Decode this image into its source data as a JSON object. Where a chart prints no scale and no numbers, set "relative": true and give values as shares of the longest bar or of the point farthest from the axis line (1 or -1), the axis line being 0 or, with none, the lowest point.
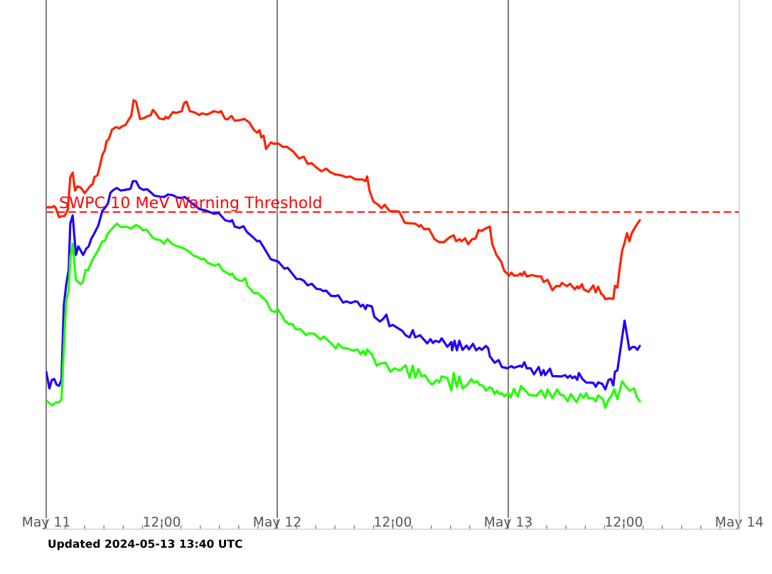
{
  "chart_data": {
    "type": "line",
    "relative": true,
    "tick_labels": "x",
    "xlim": [
      "2024-05-11T00:00",
      "2024-05-14T00:00"
    ],
    "xticks": [
      {
        "value": "2024-05-11T00:00",
        "label": "May 11"
      },
      {
        "value": "2024-05-11T02:00",
        "label": null
      },
      {
        "value": "2024-05-11T04:00",
        "label": null
      },
      {
        "value": "2024-05-11T06:00",
        "label": null
      },
      {
        "value": "2024-05-11T08:00",
        "label": null
      },
      {
        "value": "2024-05-11T10:00",
        "label": null
      },
      {
        "value": "2024-05-11T12:00",
        "label": "12:00"
      },
      {
        "value": "2024-05-11T14:00",
        "label": null
      },
      {
        "value": "2024-05-11T16:00",
        "label": null
      },
      {
        "value": "2024-05-11T18:00",
        "label": null
      },
      {
        "value": "2024-05-11T20:00",
        "label": null
      },
      {
        "value": "2024-05-11T22:00",
        "label": null
      },
      {
        "value": "2024-05-12T00:00",
        "label": "May 12"
      },
      {
        "value": "2024-05-12T02:00",
        "label": null
      },
      {
        "value": "2024-05-12T04:00",
        "label": null
      },
      {
        "value": "2024-05-12T06:00",
        "label": null
      },
      {
        "value": "2024-05-12T08:00",
        "label": null
      },
      {
        "value": "2024-05-12T10:00",
        "label": null
      },
      {
        "value": "2024-05-12T12:00",
        "label": "12:00"
      },
      {
        "value": "2024-05-12T14:00",
        "label": null
      },
      {
        "value": "2024-05-12T16:00",
        "label": null
      },
      {
        "value": "2024-05-12T18:00",
        "label": null
      },
      {
        "value": "2024-05-12T20:00",
        "label": null
      },
      {
        "value": "2024-05-12T22:00",
        "label": null
      },
      {
        "value": "2024-05-13T00:00",
        "label": "May 13"
      },
      {
        "value": "2024-05-13T02:00",
        "label": null
      },
      {
        "value": "2024-05-13T04:00",
        "label": null
      },
      {
        "value": "2024-05-13T06:00",
        "label": null
      },
      {
        "value": "2024-05-13T08:00",
        "label": null
      },
      {
        "value": "2024-05-13T10:00",
        "label": null
      },
      {
        "value": "2024-05-13T12:00",
        "label": "12:00"
      },
      {
        "value": "2024-05-13T14:00",
        "label": null
      },
      {
        "value": "2024-05-13T16:00",
        "label": null
      },
      {
        "value": "2024-05-13T18:00",
        "label": null
      },
      {
        "value": "2024-05-13T20:00",
        "label": null
      },
      {
        "value": "2024-05-13T22:00",
        "label": null
      },
      {
        "value": "2024-05-14T00:00",
        "label": "May 14"
      }
    ],
    "series": [
      {
        "color": "#ff2200",
        "x": [
          "2024-05-11T00:00",
          "2024-05-11T00:35",
          "2024-05-11T00:50",
          "2024-05-11T01:00",
          "2024-05-11T01:20",
          "2024-05-11T01:35",
          "2024-05-11T01:55",
          "2024-05-11T02:15",
          "2024-05-11T02:30",
          "2024-05-11T02:45",
          "2024-05-11T03:00",
          "2024-05-11T03:15",
          "2024-05-11T03:35",
          "2024-05-11T04:00",
          "2024-05-11T04:35",
          "2024-05-11T04:50",
          "2024-05-11T05:00",
          "2024-05-11T05:20",
          "2024-05-11T05:35",
          "2024-05-11T05:50",
          "2024-05-11T06:05",
          "2024-05-11T06:15",
          "2024-05-11T06:30",
          "2024-05-11T06:50",
          "2024-05-11T07:15",
          "2024-05-11T07:35",
          "2024-05-11T07:55",
          "2024-05-11T08:15",
          "2024-05-11T08:35",
          "2024-05-11T08:50",
          "2024-05-11T09:05",
          "2024-05-11T09:20",
          "2024-05-11T09:45",
          "2024-05-11T10:05",
          "2024-05-11T10:35",
          "2024-05-11T10:50",
          "2024-05-11T11:05",
          "2024-05-11T11:20",
          "2024-05-11T11:45",
          "2024-05-11T12:15",
          "2024-05-11T12:25",
          "2024-05-11T12:40",
          "2024-05-11T13:10",
          "2024-05-11T13:30",
          "2024-05-11T14:05",
          "2024-05-11T14:20",
          "2024-05-11T14:35",
          "2024-05-11T14:55",
          "2024-05-11T15:25",
          "2024-05-11T15:55",
          "2024-05-11T16:10",
          "2024-05-11T16:40",
          "2024-05-11T17:00",
          "2024-05-11T17:25",
          "2024-05-11T17:55",
          "2024-05-11T18:10",
          "2024-05-11T18:35",
          "2024-05-11T18:50",
          "2024-05-11T19:15",
          "2024-05-11T19:35",
          "2024-05-11T20:05",
          "2024-05-11T20:35",
          "2024-05-11T21:05",
          "2024-05-11T21:35",
          "2024-05-11T21:55",
          "2024-05-11T22:10",
          "2024-05-11T22:20",
          "2024-05-11T22:35",
          "2024-05-11T22:50",
          "2024-05-11T23:20",
          "2024-05-11T23:40",
          "2024-05-12T00:05",
          "2024-05-12T00:35",
          "2024-05-12T01:00",
          "2024-05-12T01:40",
          "2024-05-12T02:15",
          "2024-05-12T02:45",
          "2024-05-12T03:10",
          "2024-05-12T03:35",
          "2024-05-12T04:00",
          "2024-05-12T04:35",
          "2024-05-12T05:05",
          "2024-05-12T05:30",
          "2024-05-12T06:00",
          "2024-05-12T06:45",
          "2024-05-12T07:10",
          "2024-05-12T07:35",
          "2024-05-12T08:10",
          "2024-05-12T08:50",
          "2024-05-12T09:10",
          "2024-05-12T09:20",
          "2024-05-12T09:35",
          "2024-05-12T10:00",
          "2024-05-12T10:30",
          "2024-05-12T10:50",
          "2024-05-12T11:10",
          "2024-05-12T11:40",
          "2024-05-12T12:10",
          "2024-05-12T12:40",
          "2024-05-12T13:15",
          "2024-05-12T13:35",
          "2024-05-12T14:20",
          "2024-05-12T14:45",
          "2024-05-12T14:55",
          "2024-05-12T15:15",
          "2024-05-12T15:45",
          "2024-05-12T16:20",
          "2024-05-12T16:50",
          "2024-05-12T17:20",
          "2024-05-12T17:50",
          "2024-05-12T18:20",
          "2024-05-12T18:35",
          "2024-05-12T18:55",
          "2024-05-12T19:10",
          "2024-05-12T19:30",
          "2024-05-12T19:50",
          "2024-05-12T20:15",
          "2024-05-12T20:35",
          "2024-05-12T20:55",
          "2024-05-12T21:15",
          "2024-05-12T21:40",
          "2024-05-12T22:05",
          "2024-05-12T22:20",
          "2024-05-12T22:45",
          "2024-05-12T23:15",
          "2024-05-12T23:35",
          "2024-05-13T00:05",
          "2024-05-13T00:20",
          "2024-05-13T00:35",
          "2024-05-13T01:00",
          "2024-05-13T01:15",
          "2024-05-13T01:25",
          "2024-05-13T01:40",
          "2024-05-13T01:55",
          "2024-05-13T02:25",
          "2024-05-13T03:05",
          "2024-05-13T03:25",
          "2024-05-13T03:40",
          "2024-05-13T04:05",
          "2024-05-13T04:35",
          "2024-05-13T05:00",
          "2024-05-13T05:20",
          "2024-05-13T05:35",
          "2024-05-13T06:05",
          "2024-05-13T06:25",
          "2024-05-13T06:55",
          "2024-05-13T07:10",
          "2024-05-13T07:20",
          "2024-05-13T07:40",
          "2024-05-13T07:50",
          "2024-05-13T08:20",
          "2024-05-13T08:50",
          "2024-05-13T09:05",
          "2024-05-13T09:20",
          "2024-05-13T09:40",
          "2024-05-13T09:50",
          "2024-05-13T10:05",
          "2024-05-13T10:25",
          "2024-05-13T10:55",
          "2024-05-13T11:05",
          "2024-05-13T11:20",
          "2024-05-13T11:35",
          "2024-05-13T11:50",
          "2024-05-13T12:05",
          "2024-05-13T12:20",
          "2024-05-13T12:35",
          "2024-05-13T12:50",
          "2024-05-13T13:15",
          "2024-05-13T13:40"
        ],
        "values": [
          0.75,
          0.75,
          0.753,
          0.748,
          0.727,
          0.729,
          0.73,
          0.745,
          0.82,
          0.831,
          0.789,
          0.799,
          0.796,
          0.783,
          0.8,
          0.804,
          0.82,
          0.825,
          0.847,
          0.872,
          0.883,
          0.903,
          0.909,
          0.931,
          0.937,
          0.934,
          0.939,
          0.942,
          0.955,
          0.963,
          1,
          0.996,
          0.956,
          0.957,
          0.963,
          0.964,
          0.977,
          0.971,
          0.957,
          0.955,
          0.961,
          0.957,
          0.972,
          0.97,
          0.974,
          0.993,
          0.996,
          0.974,
          0.971,
          0.965,
          0.969,
          0.966,
          0.969,
          0.974,
          0.971,
          0.974,
          0.956,
          0.955,
          0.963,
          0.952,
          0.953,
          0.956,
          0.948,
          0.93,
          0.924,
          0.93,
          0.913,
          0.917,
          0.886,
          0.901,
          0.898,
          0.899,
          0.891,
          0.891,
          0.88,
          0.864,
          0.868,
          0.851,
          0.853,
          0.844,
          0.834,
          0.84,
          0.832,
          0.827,
          0.824,
          0.82,
          0.822,
          0.815,
          0.815,
          0.811,
          0.822,
          0.789,
          0.763,
          0.756,
          0.748,
          0.756,
          0.741,
          0.741,
          0.74,
          0.714,
          0.713,
          0.712,
          0.705,
          0.709,
          0.699,
          0.7,
          0.676,
          0.669,
          0.669,
          0.679,
          0.685,
          0.671,
          0.676,
          0.671,
          0.678,
          0.664,
          0.676,
          0.677,
          0.697,
          0.695,
          0.701,
          0.705,
          0.665,
          0.64,
          0.624,
          0.602,
          0.591,
          0.598,
          0.591,
          0.591,
          0.596,
          0.591,
          0.6,
          0.589,
          0.592,
          0.589,
          0.589,
          0.576,
          0.581,
          0.557,
          0.567,
          0.566,
          0.574,
          0.566,
          0.572,
          0.559,
          0.566,
          0.561,
          0.571,
          0.559,
          0.553,
          0.568,
          0.552,
          0.565,
          0.548,
          0.546,
          0.536,
          0.538,
          0.537,
          0.567,
          0.563,
          0.61,
          0.649,
          0.668,
          0.69,
          0.671,
          0.69,
          0.706,
          0.72
        ]
      },
      {
        "color": "#2200ff",
        "x": [
          "2024-05-11T00:00",
          "2024-05-11T00:20",
          "2024-05-11T00:35",
          "2024-05-11T00:50",
          "2024-05-11T01:05",
          "2024-05-11T01:20",
          "2024-05-11T01:35",
          "2024-05-11T01:50",
          "2024-05-11T02:05",
          "2024-05-11T02:20",
          "2024-05-11T02:30",
          "2024-05-11T02:45",
          "2024-05-11T03:05",
          "2024-05-11T03:20",
          "2024-05-11T03:50",
          "2024-05-11T04:10",
          "2024-05-11T04:25",
          "2024-05-11T04:40",
          "2024-05-11T05:05",
          "2024-05-11T05:25",
          "2024-05-11T05:50",
          "2024-05-11T06:05",
          "2024-05-11T06:25",
          "2024-05-11T06:40",
          "2024-05-11T07:00",
          "2024-05-11T07:20",
          "2024-05-11T07:45",
          "2024-05-11T08:15",
          "2024-05-11T08:45",
          "2024-05-11T09:00",
          "2024-05-11T09:20",
          "2024-05-11T09:40",
          "2024-05-11T10:05",
          "2024-05-11T10:30",
          "2024-05-11T11:15",
          "2024-05-11T11:50",
          "2024-05-11T12:15",
          "2024-05-11T12:40",
          "2024-05-11T13:10",
          "2024-05-11T13:35",
          "2024-05-11T14:05",
          "2024-05-11T14:25",
          "2024-05-11T15:10",
          "2024-05-11T15:55",
          "2024-05-11T16:40",
          "2024-05-11T17:25",
          "2024-05-11T17:55",
          "2024-05-11T18:35",
          "2024-05-11T19:05",
          "2024-05-11T19:20",
          "2024-05-11T19:35",
          "2024-05-11T20:05",
          "2024-05-11T20:30",
          "2024-05-11T20:50",
          "2024-05-11T21:30",
          "2024-05-11T21:55",
          "2024-05-11T22:10",
          "2024-05-11T22:40",
          "2024-05-11T23:20",
          "2024-05-11T23:55",
          "2024-05-12T00:05",
          "2024-05-12T00:45",
          "2024-05-12T01:05",
          "2024-05-12T02:00",
          "2024-05-12T02:25",
          "2024-05-12T02:45",
          "2024-05-12T03:10",
          "2024-05-12T03:35",
          "2024-05-12T04:05",
          "2024-05-12T04:30",
          "2024-05-12T04:45",
          "2024-05-12T05:05",
          "2024-05-12T05:35",
          "2024-05-12T06:00",
          "2024-05-12T06:20",
          "2024-05-12T06:50",
          "2024-05-12T07:10",
          "2024-05-12T07:40",
          "2024-05-12T08:05",
          "2024-05-12T08:20",
          "2024-05-12T08:40",
          "2024-05-12T08:55",
          "2024-05-12T09:10",
          "2024-05-12T09:20",
          "2024-05-12T09:50",
          "2024-05-12T10:05",
          "2024-05-12T10:40",
          "2024-05-12T11:00",
          "2024-05-12T11:20",
          "2024-05-12T11:40",
          "2024-05-12T12:00",
          "2024-05-12T13:00",
          "2024-05-12T13:20",
          "2024-05-12T13:45",
          "2024-05-12T14:05",
          "2024-05-12T14:20",
          "2024-05-12T14:50",
          "2024-05-12T15:35",
          "2024-05-12T15:55",
          "2024-05-12T16:10",
          "2024-05-12T16:25",
          "2024-05-12T16:50",
          "2024-05-12T17:05",
          "2024-05-12T17:40",
          "2024-05-12T18:05",
          "2024-05-12T18:10",
          "2024-05-12T18:25",
          "2024-05-12T18:40",
          "2024-05-12T18:55",
          "2024-05-12T19:15",
          "2024-05-12T19:40",
          "2024-05-12T19:55",
          "2024-05-12T20:20",
          "2024-05-12T20:40",
          "2024-05-12T21:00",
          "2024-05-12T21:15",
          "2024-05-12T21:40",
          "2024-05-12T21:55",
          "2024-05-12T22:05",
          "2024-05-12T22:35",
          "2024-05-12T23:00",
          "2024-05-12T23:20",
          "2024-05-12T23:55",
          "2024-05-13T00:20",
          "2024-05-13T00:35",
          "2024-05-13T01:15",
          "2024-05-13T01:25",
          "2024-05-13T01:40",
          "2024-05-13T01:55",
          "2024-05-13T02:20",
          "2024-05-13T02:40",
          "2024-05-13T03:10",
          "2024-05-13T03:25",
          "2024-05-13T03:40",
          "2024-05-13T03:50",
          "2024-05-13T04:20",
          "2024-05-13T04:35",
          "2024-05-13T05:30",
          "2024-05-13T05:55",
          "2024-05-13T06:10",
          "2024-05-13T06:25",
          "2024-05-13T06:40",
          "2024-05-13T06:55",
          "2024-05-13T07:10",
          "2024-05-13T07:20",
          "2024-05-13T07:40",
          "2024-05-13T08:05",
          "2024-05-13T08:50",
          "2024-05-13T09:05",
          "2024-05-13T09:20",
          "2024-05-13T09:45",
          "2024-05-13T10:05",
          "2024-05-13T10:25",
          "2024-05-13T10:40",
          "2024-05-13T10:55",
          "2024-05-13T11:05",
          "2024-05-13T11:20",
          "2024-05-13T12:05",
          "2024-05-13T12:35",
          "2024-05-13T12:55",
          "2024-05-13T13:10",
          "2024-05-13T13:25",
          "2024-05-13T13:40"
        ],
        "values": [
          0.367,
          0.328,
          0.348,
          0.35,
          0.337,
          0.334,
          0.348,
          0.522,
          0.571,
          0.604,
          0.712,
          0.731,
          0.639,
          0.659,
          0.639,
          0.654,
          0.659,
          0.676,
          0.693,
          0.708,
          0.742,
          0.748,
          0.759,
          0.784,
          0.791,
          0.795,
          0.789,
          0.791,
          0.793,
          0.811,
          0.811,
          0.796,
          0.791,
          0.792,
          0.777,
          0.775,
          0.774,
          0.78,
          0.778,
          0.773,
          0.772,
          0.774,
          0.759,
          0.746,
          0.742,
          0.735,
          0.737,
          0.72,
          0.717,
          0.72,
          0.705,
          0.702,
          0.706,
          0.693,
          0.68,
          0.671,
          0.672,
          0.654,
          0.629,
          0.625,
          0.624,
          0.607,
          0.609,
          0.583,
          0.583,
          0.579,
          0.568,
          0.572,
          0.56,
          0.559,
          0.555,
          0.556,
          0.544,
          0.543,
          0.545,
          0.528,
          0.531,
          0.527,
          0.531,
          0.53,
          0.519,
          0.523,
          0.513,
          0.522,
          0.519,
          0.495,
          0.484,
          0.49,
          0.5,
          0.473,
          0.476,
          0.462,
          0.452,
          0.447,
          0.464,
          0.447,
          0.452,
          0.433,
          0.443,
          0.434,
          0.439,
          0.436,
          0.445,
          0.425,
          0.436,
          0.417,
          0.439,
          0.417,
          0.439,
          0.418,
          0.428,
          0.419,
          0.432,
          0.417,
          0.423,
          0.418,
          0.427,
          0.422,
          0.403,
          0.388,
          0.394,
          0.378,
          0.375,
          0.38,
          0.376,
          0.381,
          0.378,
          0.389,
          0.375,
          0.375,
          0.361,
          0.378,
          0.359,
          0.371,
          0.359,
          0.374,
          0.357,
          0.356,
          0.359,
          0.353,
          0.358,
          0.352,
          0.356,
          0.348,
          0.364,
          0.351,
          0.342,
          0.341,
          0.332,
          0.342,
          0.339,
          0.326,
          0.348,
          0.35,
          0.335,
          0.367,
          0.37,
          0.486,
          0.418,
          0.425,
          0.424,
          0.418,
          0.427
        ]
      },
      {
        "color": "#22ff00",
        "x": [
          "2024-05-11T00:00",
          "2024-05-11T00:35",
          "2024-05-11T01:00",
          "2024-05-11T01:20",
          "2024-05-11T01:35",
          "2024-05-11T01:55",
          "2024-05-11T02:05",
          "2024-05-11T02:20",
          "2024-05-11T02:30",
          "2024-05-11T02:45",
          "2024-05-11T03:05",
          "2024-05-11T03:35",
          "2024-05-11T03:50",
          "2024-05-11T04:05",
          "2024-05-11T04:20",
          "2024-05-11T04:50",
          "2024-05-11T05:25",
          "2024-05-11T05:50",
          "2024-05-11T06:05",
          "2024-05-11T06:20",
          "2024-05-11T06:45",
          "2024-05-11T07:20",
          "2024-05-11T07:45",
          "2024-05-11T08:15",
          "2024-05-11T08:50",
          "2024-05-11T09:20",
          "2024-05-11T09:45",
          "2024-05-11T10:00",
          "2024-05-11T10:25",
          "2024-05-11T11:05",
          "2024-05-11T11:30",
          "2024-05-11T11:50",
          "2024-05-11T12:15",
          "2024-05-11T12:35",
          "2024-05-11T13:05",
          "2024-05-11T13:25",
          "2024-05-11T14:20",
          "2024-05-11T14:50",
          "2024-05-11T15:20",
          "2024-05-11T15:35",
          "2024-05-11T16:05",
          "2024-05-11T16:25",
          "2024-05-11T16:45",
          "2024-05-11T17:30",
          "2024-05-11T17:55",
          "2024-05-11T18:20",
          "2024-05-11T19:05",
          "2024-05-11T19:20",
          "2024-05-11T19:35",
          "2024-05-11T19:55",
          "2024-05-11T20:20",
          "2024-05-11T20:40",
          "2024-05-11T20:55",
          "2024-05-11T21:35",
          "2024-05-11T22:00",
          "2024-05-11T22:50",
          "2024-05-11T23:20",
          "2024-05-11T23:45",
          "2024-05-12T00:05",
          "2024-05-12T00:35",
          "2024-05-12T00:45",
          "2024-05-12T01:15",
          "2024-05-12T01:35",
          "2024-05-12T01:55",
          "2024-05-12T02:25",
          "2024-05-12T03:00",
          "2024-05-12T03:15",
          "2024-05-12T03:50",
          "2024-05-12T04:30",
          "2024-05-12T04:50",
          "2024-05-12T05:45",
          "2024-05-12T06:05",
          "2024-05-12T06:20",
          "2024-05-12T06:45",
          "2024-05-12T07:10",
          "2024-05-12T07:55",
          "2024-05-12T08:20",
          "2024-05-12T08:40",
          "2024-05-12T08:55",
          "2024-05-12T09:10",
          "2024-05-12T09:20",
          "2024-05-12T09:50",
          "2024-05-12T10:20",
          "2024-05-12T10:40",
          "2024-05-12T11:15",
          "2024-05-12T11:45",
          "2024-05-12T12:10",
          "2024-05-12T12:45",
          "2024-05-12T13:20",
          "2024-05-12T13:45",
          "2024-05-12T14:05",
          "2024-05-12T14:20",
          "2024-05-12T14:40",
          "2024-05-12T15:00",
          "2024-05-12T15:20",
          "2024-05-12T15:45",
          "2024-05-12T16:05",
          "2024-05-12T16:35",
          "2024-05-12T16:50",
          "2024-05-12T17:05",
          "2024-05-12T17:40",
          "2024-05-12T18:05",
          "2024-05-12T18:20",
          "2024-05-12T18:40",
          "2024-05-12T18:55",
          "2024-05-12T19:15",
          "2024-05-12T19:45",
          "2024-05-12T20:10",
          "2024-05-12T20:25",
          "2024-05-12T20:45",
          "2024-05-12T21:00",
          "2024-05-12T21:25",
          "2024-05-12T21:40",
          "2024-05-12T22:05",
          "2024-05-12T22:20",
          "2024-05-12T22:35",
          "2024-05-12T22:50",
          "2024-05-12T23:05",
          "2024-05-12T23:20",
          "2024-05-12T23:35",
          "2024-05-13T00:00",
          "2024-05-13T00:15",
          "2024-05-13T00:35",
          "2024-05-13T01:00",
          "2024-05-13T01:20",
          "2024-05-13T02:10",
          "2024-05-13T02:55",
          "2024-05-13T03:25",
          "2024-05-13T03:50",
          "2024-05-13T04:05",
          "2024-05-13T04:35",
          "2024-05-13T05:05",
          "2024-05-13T05:25",
          "2024-05-13T05:45",
          "2024-05-13T06:10",
          "2024-05-13T06:30",
          "2024-05-13T07:05",
          "2024-05-13T07:30",
          "2024-05-13T07:50",
          "2024-05-13T08:05",
          "2024-05-13T08:20",
          "2024-05-13T08:50",
          "2024-05-13T09:05",
          "2024-05-13T09:20",
          "2024-05-13T09:50",
          "2024-05-13T10:05",
          "2024-05-13T10:25",
          "2024-05-13T10:40",
          "2024-05-13T11:00",
          "2024-05-13T11:20",
          "2024-05-13T11:50",
          "2024-05-13T12:10",
          "2024-05-13T12:35",
          "2024-05-13T13:05",
          "2024-05-13T13:20",
          "2024-05-13T13:40"
        ],
        "values": [
          0.3,
          0.289,
          0.295,
          0.296,
          0.302,
          0.461,
          0.533,
          0.557,
          0.632,
          0.665,
          0.581,
          0.571,
          0.577,
          0.604,
          0.603,
          0.629,
          0.651,
          0.671,
          0.671,
          0.687,
          0.698,
          0.712,
          0.704,
          0.705,
          0.701,
          0.709,
          0.704,
          0.697,
          0.698,
          0.679,
          0.675,
          0.674,
          0.665,
          0.676,
          0.665,
          0.661,
          0.654,
          0.647,
          0.637,
          0.636,
          0.629,
          0.63,
          0.621,
          0.614,
          0.618,
          0.603,
          0.593,
          0.596,
          0.585,
          0.581,
          0.578,
          0.585,
          0.567,
          0.55,
          0.55,
          0.533,
          0.51,
          0.506,
          0.512,
          0.494,
          0.486,
          0.478,
          0.478,
          0.466,
          0.466,
          0.452,
          0.456,
          0.456,
          0.442,
          0.449,
          0.43,
          0.421,
          0.432,
          0.423,
          0.422,
          0.416,
          0.419,
          0.408,
          0.416,
          0.406,
          0.419,
          0.407,
          0.381,
          0.386,
          0.388,
          0.367,
          0.375,
          0.37,
          0.382,
          0.353,
          0.381,
          0.353,
          0.373,
          0.356,
          0.359,
          0.345,
          0.337,
          0.348,
          0.342,
          0.356,
          0.353,
          0.323,
          0.364,
          0.331,
          0.356,
          0.328,
          0.337,
          0.35,
          0.342,
          0.345,
          0.337,
          0.334,
          0.323,
          0.331,
          0.328,
          0.315,
          0.323,
          0.315,
          0.317,
          0.31,
          0.317,
          0.307,
          0.327,
          0.309,
          0.334,
          0.313,
          0.311,
          0.324,
          0.306,
          0.326,
          0.306,
          0.326,
          0.313,
          0.312,
          0.298,
          0.315,
          0.296,
          0.315,
          0.306,
          0.317,
          0.305,
          0.305,
          0.298,
          0.312,
          0.303,
          0.283,
          0.302,
          0.309,
          0.326,
          0.303,
          0.345,
          0.334,
          0.323,
          0.328,
          0.309,
          0.298
        ]
      }
    ],
    "ref_lines": [
      {
        "axis": "y",
        "value": 0.739,
        "label": "SWPC 10 MeV Warning Threshold",
        "color": "#ff0000",
        "line_style": "dashed"
      },
      {
        "axis": "x",
        "value": "2024-05-12T00:00",
        "color": "#808080"
      },
      {
        "axis": "x",
        "value": "2024-05-13T00:00",
        "color": "#808080"
      }
    ],
    "annotations": [
      "Updated 2024-05-13 13:40 UTC"
    ]
  }
}
